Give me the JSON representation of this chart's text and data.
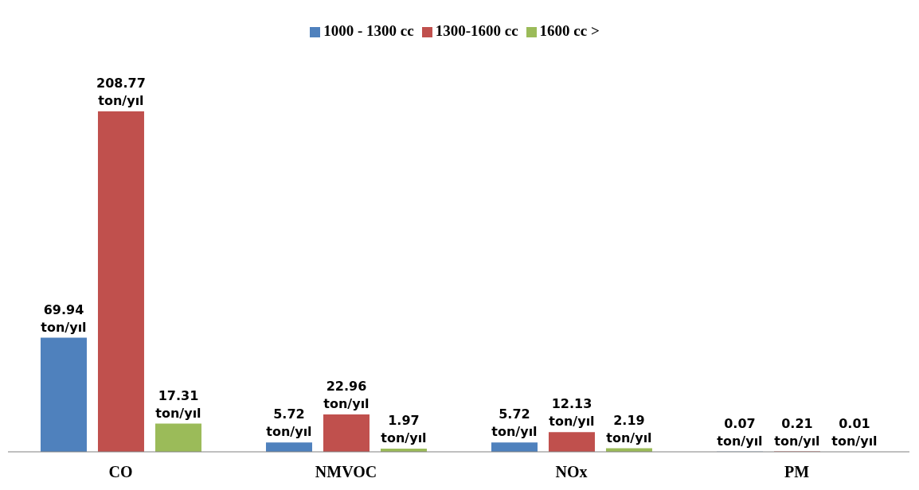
{
  "chart_data": {
    "type": "bar",
    "categories": [
      "CO",
      "NMVOC",
      "NOx",
      "PM"
    ],
    "series": [
      {
        "name": "1000 - 1300 cc",
        "color": "#4f81bd",
        "values": [
          69.94,
          5.72,
          5.72,
          0.07
        ],
        "value_labels": [
          "69.94 ton/yıl",
          "5.72 ton/yıl",
          "5.72 ton/yıl",
          "0.07 ton/yıl"
        ]
      },
      {
        "name": "1300-1600 cc",
        "color": "#c0504d",
        "values": [
          208.77,
          22.96,
          12.13,
          0.21
        ],
        "value_labels": [
          "208.77 ton/yıl",
          "22.96 ton/yıl",
          "12.13 ton/yıl",
          "0.21 ton/yıl"
        ]
      },
      {
        "name": "1600 cc >",
        "color": "#9bbb59",
        "values": [
          17.31,
          1.97,
          2.19,
          0.01
        ],
        "value_labels": [
          "17.31 ton/yıl",
          "1.97 ton/yıl",
          "2.19 ton/yıl",
          "0.01 ton/yıl"
        ]
      }
    ],
    "legend": "top"
  }
}
